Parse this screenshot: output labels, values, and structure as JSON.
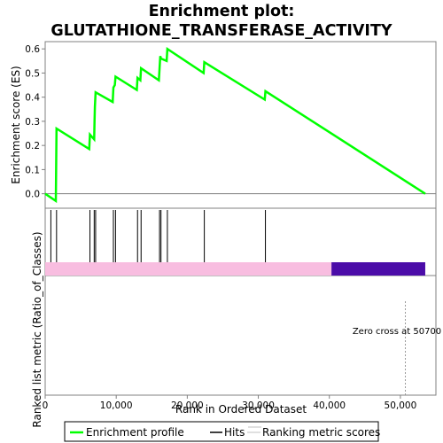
{
  "title_line1": "Enrichment plot:",
  "title_line2": "GLUTATHIONE_TRANSFERASE_ACTIVITY",
  "ylabel_top": "Enrichment score (ES)",
  "ylabel_bottom": "Ranked list metric (Ratio_of_Classes)",
  "xlabel": "Rank in Ordered Dataset",
  "zero_cross_label": "Zero cross at 50700",
  "colors": {
    "profile": "#00ff00",
    "hits": "#000000",
    "pink": "#f8bde0",
    "purple": "#4b0ca8",
    "zero_line": "#808080",
    "axis": "#808080"
  },
  "legend": {
    "items": [
      {
        "label": "Enrichment profile",
        "type": "profile"
      },
      {
        "label": "Hits",
        "type": "hits"
      },
      {
        "label": "Ranking metric scores",
        "type": "metric"
      }
    ]
  },
  "chart_data": {
    "type": "line",
    "xlim": [
      0,
      55000
    ],
    "ylim": [
      -0.06,
      0.63
    ],
    "x_ticks": [
      0,
      10000,
      20000,
      30000,
      40000,
      50000
    ],
    "x_tick_labels": [
      "0",
      "10,000",
      "20,000",
      "30,000",
      "40,000",
      "50,000"
    ],
    "y_ticks": [
      0.0,
      0.1,
      0.2,
      0.3,
      0.4,
      0.5,
      0.6
    ],
    "y_tick_labels": [
      "0.0",
      "0.1",
      "0.2",
      "0.3",
      "0.4",
      "0.5",
      "0.6"
    ],
    "enrichment_profile": {
      "x": [
        0,
        1500,
        1600,
        6200,
        6300,
        6900,
        6950,
        7000,
        7100,
        9500,
        9600,
        9800,
        9900,
        12900,
        13000,
        13400,
        13500,
        16000,
        16100,
        16200,
        16300,
        17100,
        17200,
        22300,
        22400,
        30900,
        31000,
        53500
      ],
      "y": [
        0.0,
        -0.03,
        0.27,
        0.185,
        0.245,
        0.225,
        0.3,
        0.36,
        0.42,
        0.38,
        0.44,
        0.45,
        0.485,
        0.43,
        0.48,
        0.47,
        0.52,
        0.47,
        0.52,
        0.57,
        0.56,
        0.55,
        0.6,
        0.5,
        0.545,
        0.39,
        0.425,
        0.0
      ]
    },
    "hits_x": [
      800,
      1600,
      6300,
      6900,
      7100,
      9600,
      9900,
      13000,
      13500,
      16100,
      16300,
      17200,
      22400,
      31000
    ],
    "metric_bar": {
      "pink_range": [
        0,
        40300
      ],
      "purple_range": [
        40300,
        53500
      ]
    },
    "zero_cross": 50700
  }
}
